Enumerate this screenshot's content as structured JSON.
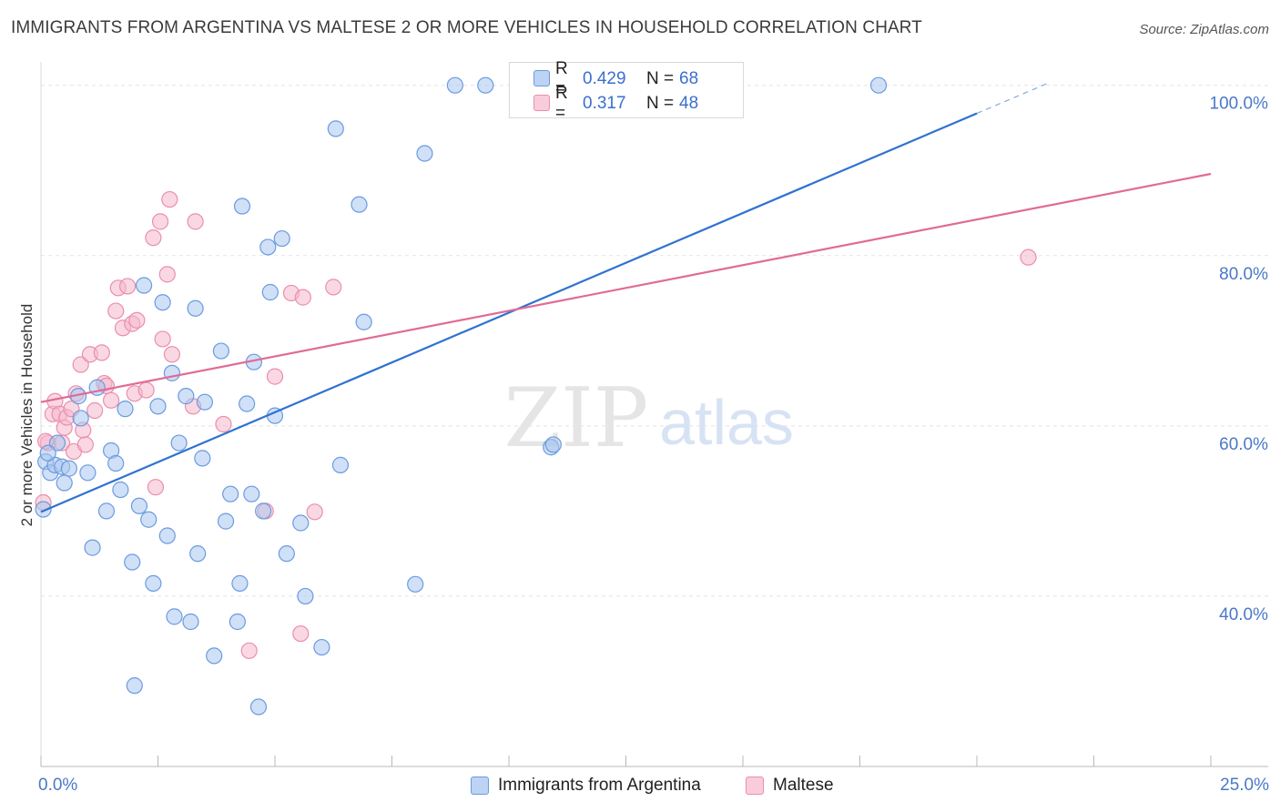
{
  "header": {
    "title": "IMMIGRANTS FROM ARGENTINA VS MALTESE 2 OR MORE VEHICLES IN HOUSEHOLD CORRELATION CHART",
    "source": "Source: ZipAtlas.com"
  },
  "watermark": {
    "zip": "ZIP",
    "atlas": "atlas"
  },
  "legend": {
    "r_label": "R =",
    "n_label": "N =",
    "entries": [
      {
        "r": "0.429",
        "n": "68"
      },
      {
        "r": "0.317",
        "n": "48"
      }
    ]
  },
  "colors": {
    "series1_fill": "#a9c6ef",
    "series1_stroke": "#6a9be0",
    "series1_line": "#2f72d0",
    "series2_fill": "#f5b8cc",
    "series2_stroke": "#ea8fab",
    "series2_line": "#e06b96",
    "axis_tick_text": "#4a78c8",
    "grid": "#e3e3e3"
  },
  "chart_data": {
    "type": "scatter",
    "title": "IMMIGRANTS FROM ARGENTINA VS MALTESE 2 OR MORE VEHICLES IN HOUSEHOLD CORRELATION CHART",
    "xlabel": "",
    "ylabel": "2 or more Vehicles in Household",
    "xlim": [
      0,
      25
    ],
    "ylim": [
      20,
      102
    ],
    "x_tick_labels": [
      "0.0%",
      "25.0%"
    ],
    "y_ticks": [
      40,
      60,
      80,
      100
    ],
    "y_tick_labels": [
      "40.0%",
      "60.0%",
      "80.0%",
      "100.0%"
    ],
    "grid": true,
    "legend_position": "top-center",
    "series": [
      {
        "name": "Immigrants from Argentina",
        "color": "#6a9be0",
        "points": [
          [
            0.05,
            50.2
          ],
          [
            0.1,
            55.8
          ],
          [
            0.2,
            54.5
          ],
          [
            0.3,
            55.4
          ],
          [
            0.35,
            58.0
          ],
          [
            0.45,
            55.2
          ],
          [
            0.5,
            53.3
          ],
          [
            0.6,
            55.0
          ],
          [
            0.8,
            63.5
          ],
          [
            0.85,
            60.9
          ],
          [
            1.0,
            54.5
          ],
          [
            1.1,
            45.7
          ],
          [
            1.2,
            64.5
          ],
          [
            1.4,
            50.0
          ],
          [
            1.5,
            57.1
          ],
          [
            1.6,
            55.6
          ],
          [
            1.7,
            52.5
          ],
          [
            1.8,
            62.0
          ],
          [
            1.95,
            44.0
          ],
          [
            2.0,
            29.5
          ],
          [
            2.1,
            50.6
          ],
          [
            2.2,
            76.5
          ],
          [
            2.3,
            49.0
          ],
          [
            2.4,
            41.5
          ],
          [
            2.5,
            62.3
          ],
          [
            2.6,
            74.5
          ],
          [
            2.7,
            47.1
          ],
          [
            2.8,
            66.2
          ],
          [
            2.85,
            37.6
          ],
          [
            2.95,
            58.0
          ],
          [
            3.1,
            63.5
          ],
          [
            3.2,
            37.0
          ],
          [
            3.3,
            73.8
          ],
          [
            3.35,
            45.0
          ],
          [
            3.45,
            56.2
          ],
          [
            3.5,
            62.8
          ],
          [
            3.7,
            33.0
          ],
          [
            3.85,
            68.8
          ],
          [
            3.95,
            48.8
          ],
          [
            4.05,
            52.0
          ],
          [
            4.2,
            37.0
          ],
          [
            4.25,
            41.5
          ],
          [
            4.3,
            85.8
          ],
          [
            4.4,
            62.6
          ],
          [
            4.55,
            67.5
          ],
          [
            4.5,
            52.0
          ],
          [
            4.65,
            27.0
          ],
          [
            4.75,
            50.0
          ],
          [
            4.85,
            81.0
          ],
          [
            4.9,
            75.7
          ],
          [
            5.0,
            61.2
          ],
          [
            5.15,
            82.0
          ],
          [
            5.25,
            45.0
          ],
          [
            5.55,
            48.6
          ],
          [
            5.65,
            40.0
          ],
          [
            6.0,
            34.0
          ],
          [
            6.3,
            94.9
          ],
          [
            6.4,
            55.4
          ],
          [
            6.8,
            86.0
          ],
          [
            6.9,
            72.2
          ],
          [
            8.0,
            41.4
          ],
          [
            8.2,
            92.0
          ],
          [
            8.85,
            100.0
          ],
          [
            9.5,
            100.0
          ],
          [
            10.9,
            57.5
          ],
          [
            10.95,
            57.8
          ],
          [
            17.9,
            100.0
          ],
          [
            0.15,
            56.8
          ]
        ],
        "trend": {
          "x": [
            0,
            20
          ],
          "y": [
            49.9,
            96.7
          ],
          "dashed_extension_to": [
            21.5,
            100.2
          ]
        }
      },
      {
        "name": "Maltese",
        "color": "#ea8fab",
        "points": [
          [
            0.05,
            51.0
          ],
          [
            0.15,
            58.0
          ],
          [
            0.25,
            61.4
          ],
          [
            0.3,
            62.9
          ],
          [
            0.4,
            61.4
          ],
          [
            0.45,
            58.0
          ],
          [
            0.5,
            59.8
          ],
          [
            0.55,
            61.0
          ],
          [
            0.65,
            62.0
          ],
          [
            0.7,
            57.0
          ],
          [
            0.75,
            63.8
          ],
          [
            0.85,
            67.2
          ],
          [
            0.9,
            59.5
          ],
          [
            0.95,
            57.8
          ],
          [
            1.05,
            68.4
          ],
          [
            1.15,
            61.8
          ],
          [
            1.3,
            68.6
          ],
          [
            1.35,
            65.0
          ],
          [
            1.4,
            64.7
          ],
          [
            1.5,
            63.0
          ],
          [
            1.6,
            73.5
          ],
          [
            1.65,
            76.2
          ],
          [
            1.75,
            71.5
          ],
          [
            1.85,
            76.4
          ],
          [
            1.95,
            72.0
          ],
          [
            2.0,
            63.8
          ],
          [
            2.05,
            72.4
          ],
          [
            2.25,
            64.2
          ],
          [
            2.4,
            82.1
          ],
          [
            2.45,
            52.8
          ],
          [
            2.55,
            84.0
          ],
          [
            2.6,
            70.2
          ],
          [
            2.7,
            77.8
          ],
          [
            2.75,
            86.6
          ],
          [
            2.8,
            68.4
          ],
          [
            3.25,
            62.3
          ],
          [
            3.3,
            84.0
          ],
          [
            3.9,
            60.2
          ],
          [
            4.45,
            33.6
          ],
          [
            4.8,
            50.0
          ],
          [
            5.0,
            65.8
          ],
          [
            5.35,
            75.6
          ],
          [
            5.55,
            35.6
          ],
          [
            5.6,
            75.1
          ],
          [
            5.85,
            49.9
          ],
          [
            6.25,
            76.3
          ],
          [
            21.1,
            79.8
          ],
          [
            0.1,
            58.2
          ]
        ],
        "trend": {
          "x": [
            0,
            25
          ],
          "y": [
            62.8,
            89.6
          ]
        }
      }
    ]
  },
  "bottom_legend": {
    "items": [
      "Immigrants from Argentina",
      "Maltese"
    ]
  }
}
